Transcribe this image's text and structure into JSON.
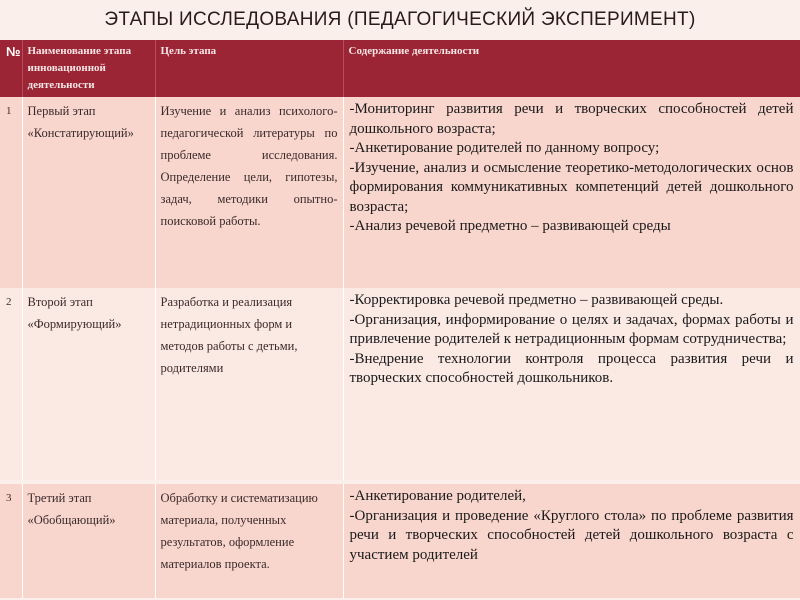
{
  "title": "ЭТАПЫ ИССЛЕДОВАНИЯ (ПЕДАГОГИЧЕСКИЙ ЭКСПЕРИМЕНТ)",
  "header": {
    "num": "№",
    "name": "Наименование этапа инновационной деятельности",
    "goal": "Цель этапа",
    "content": "Содержание деятельности"
  },
  "rows": [
    {
      "num": "1",
      "name": "Первый этап «Констатирующий»",
      "goal": "Изучение и анализ психолого-педагогической литературы по проблеме исследования. Определение цели, гипотезы, задач, методики опытно-поисковой работы.",
      "content": [
        "-Мониторинг развития речи и  творческих способностей детей дошкольного возраста;",
        "-Анкетирование родителей по данному вопросу;",
        "-Изучение, анализ и осмысление теоретико-методологических основ формирования коммуникативных компетенций детей дошкольного возраста;",
        "-Анализ речевой предметно – развивающей среды"
      ]
    },
    {
      "num": "2",
      "name": "Второй этап «Формирующий»",
      "goal": "Разработка и реализация нетрадиционных форм и методов работы с детьми, родителями",
      "content": [
        "-Корректировка  речевой предметно – развивающей среды.",
        "-Организация, информирование о целях и задачах, формах работы и привлечение родителей к нетрадиционным формам сотрудничества;",
        "-Внедрение технологии контроля процесса развития речи и творческих способностей дошкольников."
      ]
    },
    {
      "num": "3",
      "name": "Третий этап «Обобщающий»",
      "goal": "Обработку и систематизацию материала, полученных результатов, оформление материалов проекта.",
      "content": [
        "-Анкетирование родителей,",
        "-Организация и проведение «Круглого стола» по проблеме развития речи и творческих способностей детей дошкольного возраста с участием родителей"
      ]
    }
  ]
}
